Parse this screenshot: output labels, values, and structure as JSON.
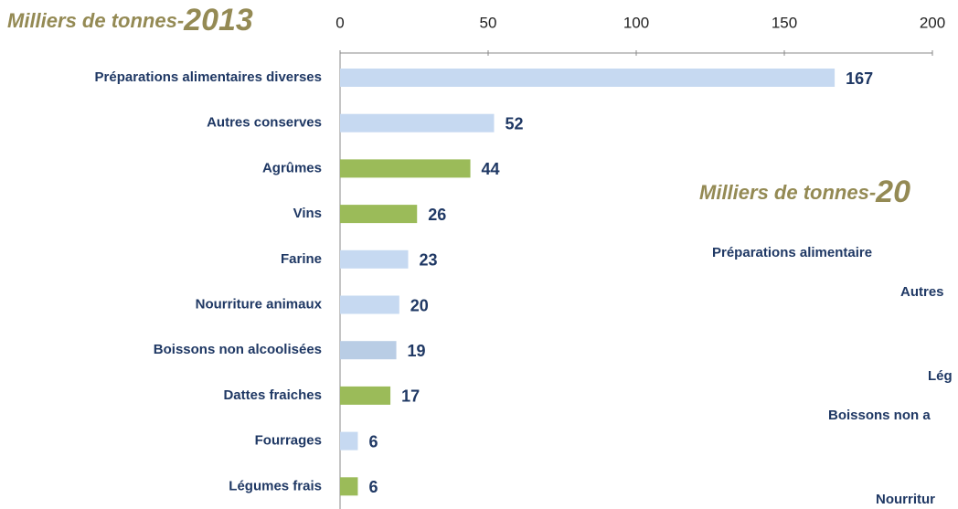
{
  "chart_data": [
    {
      "type": "hbar",
      "title": "Milliers de tonnes-",
      "year": "2013",
      "categories": [
        "Préparations alimentaires diverses",
        "Autres conserves",
        "Agrûmes",
        "Vins",
        "Farine",
        "Nourriture animaux",
        "Boissons non alcoolisées",
        "Dattes fraiches",
        "Fourrages",
        "Légumes frais"
      ],
      "values": [
        167,
        52,
        44,
        26,
        23,
        20,
        19,
        17,
        6,
        6
      ],
      "colors": [
        "#c6d9f1",
        "#c6d9f1",
        "#9bbb59",
        "#9bbb59",
        "#c6d9f1",
        "#c6d9f1",
        "#b9cde5",
        "#9bbb59",
        "#c6d9f1",
        "#9bbb59"
      ],
      "xlim": [
        0,
        200
      ],
      "xticks": [
        0,
        50,
        100,
        150,
        200
      ]
    },
    {
      "type": "hbar",
      "title": "Milliers de tonnes-",
      "year": "20",
      "categories": [
        "Préparations alimentaire",
        "Autres",
        null,
        "Lég",
        "Boissons non a",
        null,
        "Nourritur"
      ]
    }
  ]
}
